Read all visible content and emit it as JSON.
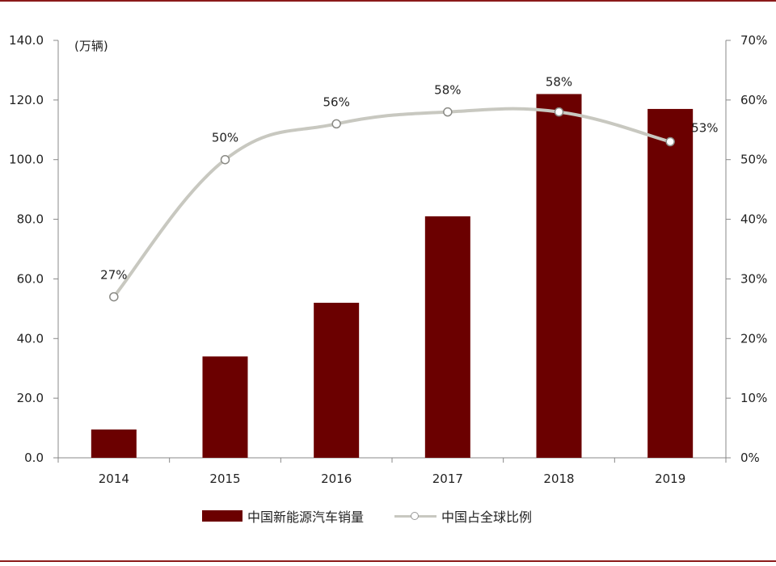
{
  "chart_data": {
    "type": "bar",
    "categories": [
      "2014",
      "2015",
      "2016",
      "2017",
      "2018",
      "2019"
    ],
    "unit_label": "(万辆)",
    "series": [
      {
        "name": "中国新能源汽车销量",
        "type": "bar",
        "axis": "left",
        "values": [
          9.5,
          34.0,
          52.0,
          81.0,
          122.0,
          117.0
        ],
        "color": "#6b0000"
      },
      {
        "name": "中国占全球比例",
        "type": "line",
        "axis": "right",
        "values": [
          27,
          50,
          56,
          58,
          58,
          53
        ],
        "labels": [
          "27%",
          "50%",
          "56%",
          "58%",
          "58%",
          "53%"
        ],
        "color": "#c8c8c0"
      }
    ],
    "y_left": {
      "ylim": [
        0,
        140
      ],
      "ticks": [
        "0.0",
        "20.0",
        "40.0",
        "60.0",
        "80.0",
        "100.0",
        "120.0",
        "140.0"
      ]
    },
    "y_right": {
      "ylim": [
        0,
        70
      ],
      "ticks": [
        "0%",
        "10%",
        "20%",
        "30%",
        "40%",
        "50%",
        "60%",
        "70%"
      ]
    },
    "legend_position": "bottom",
    "grid": false
  }
}
